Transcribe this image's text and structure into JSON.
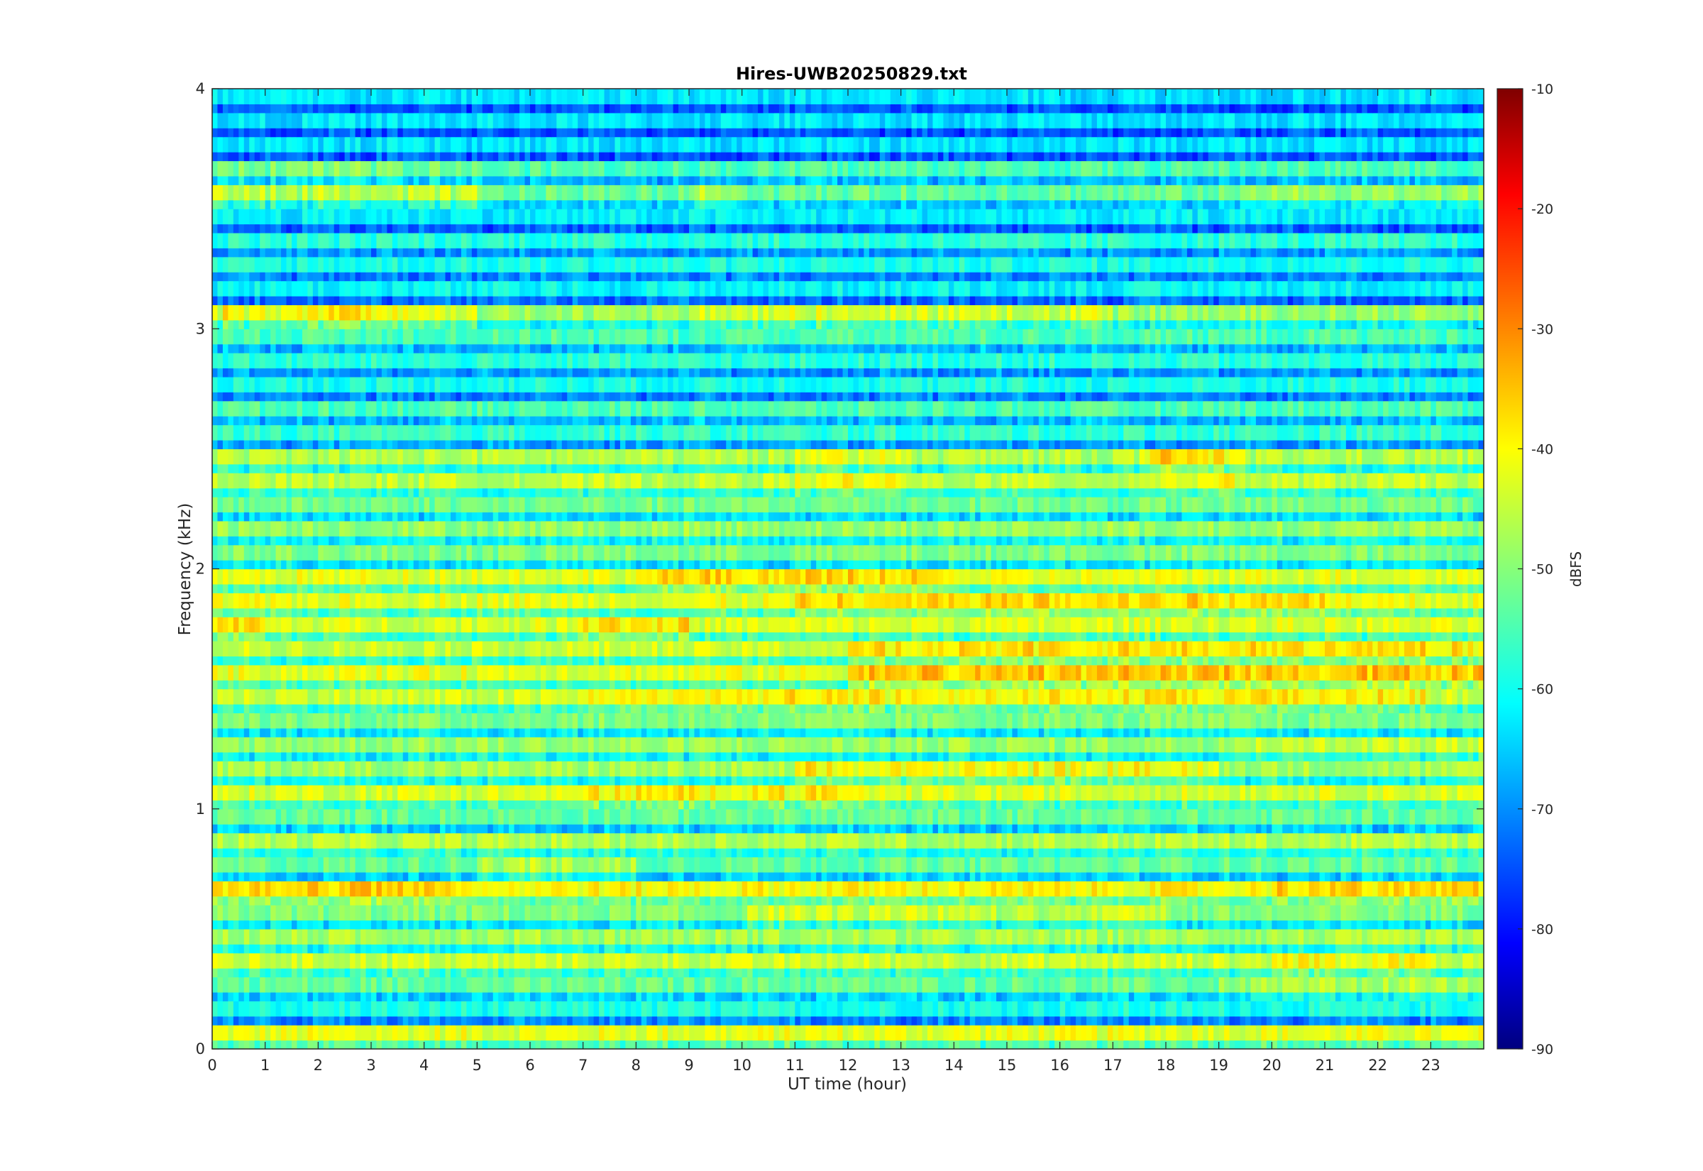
{
  "chart_data": {
    "type": "heatmap",
    "title": "Hires-UWB20250829.txt",
    "xlabel": "UT time (hour)",
    "ylabel": "Frequency (kHz)",
    "xlim": [
      0,
      24
    ],
    "ylim": [
      0,
      4
    ],
    "x_ticks": [
      0,
      1,
      2,
      3,
      4,
      5,
      6,
      7,
      8,
      9,
      10,
      11,
      12,
      13,
      14,
      15,
      16,
      17,
      18,
      19,
      20,
      21,
      22,
      23
    ],
    "y_ticks": [
      0,
      1,
      2,
      3,
      4
    ],
    "colormap": "jet",
    "colorbar": {
      "label": "dBFS",
      "range": [
        -90,
        -10
      ],
      "ticks": [
        -90,
        -80,
        -70,
        -60,
        -50,
        -40,
        -30,
        -20,
        -10
      ]
    },
    "band_step_khz": 0.1,
    "bands": [
      {
        "f": 0.05,
        "base": -42,
        "events": []
      },
      {
        "f": 0.15,
        "base": -58,
        "events": []
      },
      {
        "f": 0.25,
        "base": -52,
        "events": [
          [
            19,
            24,
            6
          ]
        ]
      },
      {
        "f": 0.35,
        "base": -44,
        "events": [
          [
            20,
            23,
            4
          ]
        ]
      },
      {
        "f": 0.45,
        "base": -47,
        "events": []
      },
      {
        "f": 0.55,
        "base": -50,
        "events": [
          [
            10,
            18,
            6
          ]
        ]
      },
      {
        "f": 0.65,
        "base": -40,
        "events": [
          [
            0,
            5,
            4
          ],
          [
            20,
            24,
            3
          ]
        ]
      },
      {
        "f": 0.75,
        "base": -52,
        "events": [
          [
            5,
            8,
            6
          ]
        ]
      },
      {
        "f": 0.85,
        "base": -46,
        "events": []
      },
      {
        "f": 0.95,
        "base": -52,
        "events": []
      },
      {
        "f": 1.05,
        "base": -43,
        "events": [
          [
            7,
            12,
            4
          ]
        ]
      },
      {
        "f": 1.15,
        "base": -47,
        "events": [
          [
            11,
            19,
            7
          ]
        ]
      },
      {
        "f": 1.25,
        "base": -48,
        "events": [
          [
            19,
            24,
            4
          ]
        ]
      },
      {
        "f": 1.35,
        "base": -50,
        "events": []
      },
      {
        "f": 1.45,
        "base": -44,
        "events": [
          [
            7,
            23,
            5
          ]
        ]
      },
      {
        "f": 1.55,
        "base": -42,
        "events": [
          [
            12,
            24,
            7
          ]
        ]
      },
      {
        "f": 1.65,
        "base": -44,
        "events": [
          [
            12,
            24,
            6
          ]
        ]
      },
      {
        "f": 1.75,
        "base": -43,
        "events": [
          [
            0,
            1,
            5
          ],
          [
            7,
            9,
            6
          ]
        ]
      },
      {
        "f": 1.85,
        "base": -42,
        "events": [
          [
            11,
            21,
            5
          ]
        ]
      },
      {
        "f": 1.95,
        "base": -42,
        "events": [
          [
            8,
            14,
            5
          ]
        ]
      },
      {
        "f": 2.05,
        "base": -50,
        "events": []
      },
      {
        "f": 2.15,
        "base": -48,
        "events": []
      },
      {
        "f": 2.25,
        "base": -51,
        "events": []
      },
      {
        "f": 2.35,
        "base": -45,
        "events": [
          [
            11,
            13,
            4
          ],
          [
            17.5,
            19.5,
            4
          ]
        ]
      },
      {
        "f": 2.45,
        "base": -46,
        "events": [
          [
            17.5,
            19.5,
            8
          ],
          [
            11,
            13,
            5
          ]
        ]
      },
      {
        "f": 2.55,
        "base": -56,
        "events": []
      },
      {
        "f": 2.65,
        "base": -54,
        "events": []
      },
      {
        "f": 2.75,
        "base": -58,
        "events": []
      },
      {
        "f": 2.85,
        "base": -57,
        "events": []
      },
      {
        "f": 2.95,
        "base": -54,
        "events": []
      },
      {
        "f": 3.05,
        "base": -48,
        "events": [
          [
            0,
            5,
            8
          ],
          [
            9,
            17,
            5
          ]
        ]
      },
      {
        "f": 3.15,
        "base": -60,
        "events": []
      },
      {
        "f": 3.25,
        "base": -58,
        "events": []
      },
      {
        "f": 3.35,
        "base": -57,
        "events": []
      },
      {
        "f": 3.45,
        "base": -61,
        "events": []
      },
      {
        "f": 3.55,
        "base": -52,
        "events": [
          [
            0,
            5,
            7
          ],
          [
            9,
            10,
            6
          ],
          [
            19.5,
            24,
            4
          ]
        ]
      },
      {
        "f": 3.65,
        "base": -54,
        "events": [
          [
            0,
            5,
            4
          ]
        ]
      },
      {
        "f": 3.75,
        "base": -62,
        "events": []
      },
      {
        "f": 3.85,
        "base": -62,
        "events": []
      },
      {
        "f": 3.95,
        "base": -62,
        "events": []
      }
    ]
  }
}
